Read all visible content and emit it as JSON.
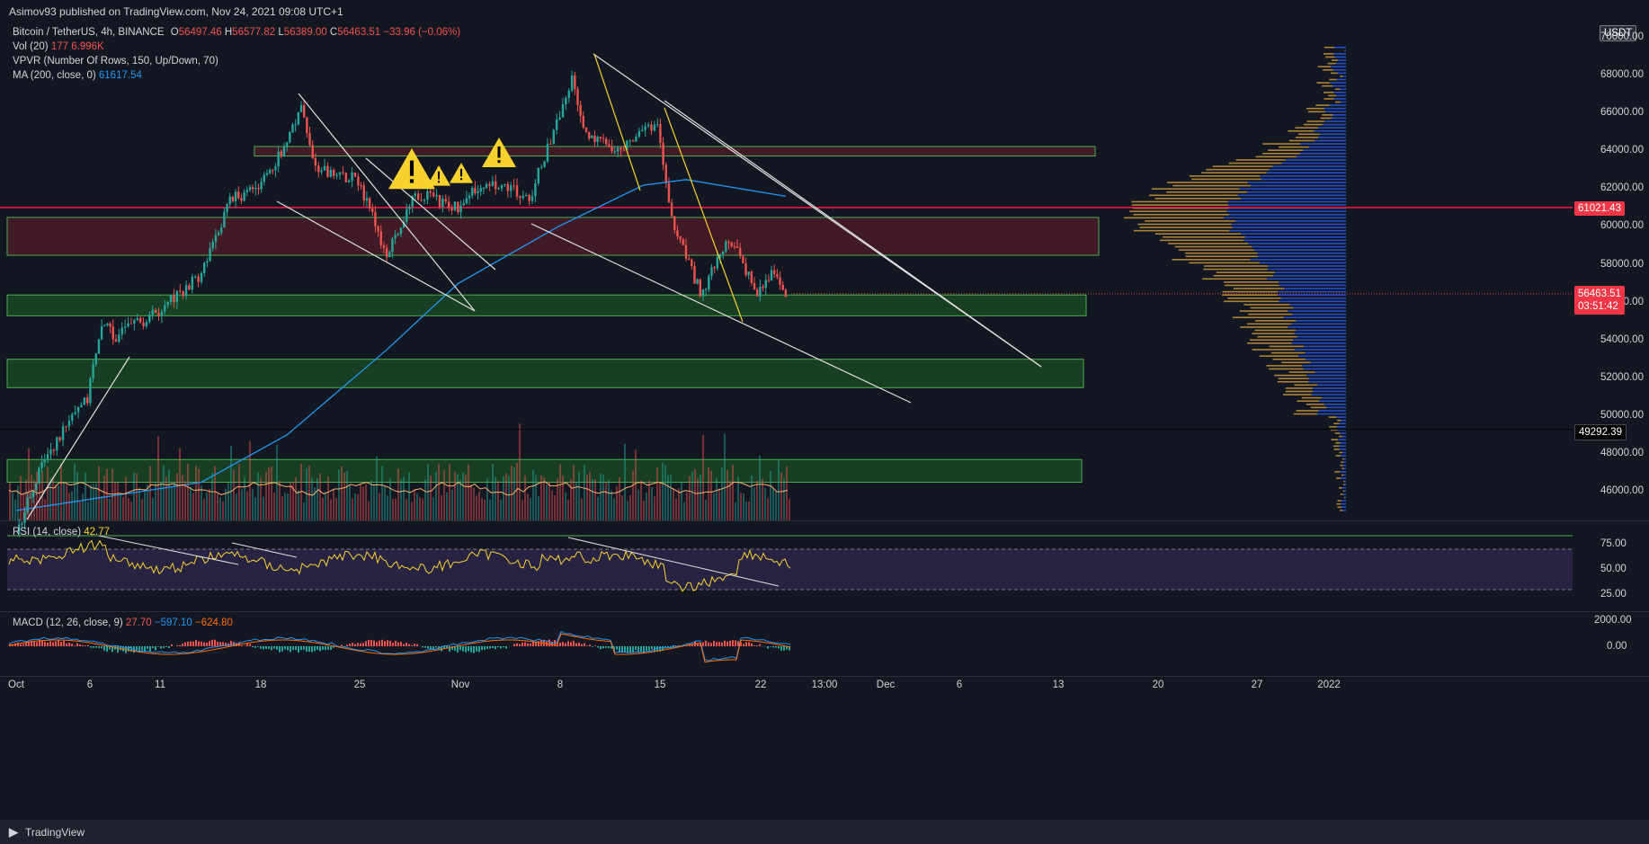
{
  "header": {
    "published": "Asimov93 published on TradingView.com, Nov 24, 2021 09:08 UTC+1"
  },
  "legend": {
    "symbol": "Bitcoin / TetherUS, 4h, BINANCE",
    "o_label": "O",
    "o": "56497.46",
    "h_label": "H",
    "h": "56577.82",
    "l_label": "L",
    "l": "56389.00",
    "c_label": "C",
    "c": "56463.51",
    "chg": "−33.96 (−0.06%)",
    "vol_label": "Vol (20)",
    "vol_a": "177",
    "vol_b": "6.996K",
    "vpvr_label": "VPVR (Number Of Rows, 150, Up/Down, 70)",
    "ma_label": "MA (200, close, 0)",
    "ma_val": "61617.54",
    "rsi_label": "RSI (14, close)",
    "rsi_val": "42.77",
    "macd_label": "MACD (12, 26, close, 9)",
    "macd_a": "27.70",
    "macd_b": "−597.10",
    "macd_c": "−624.80"
  },
  "price_axis": {
    "currency": "USDT",
    "ticks": [
      "70000.00",
      "68000.00",
      "66000.00",
      "64000.00",
      "62000.00",
      "60000.00",
      "58000.00",
      "56000.00",
      "54000.00",
      "52000.00",
      "50000.00",
      "48000.00",
      "46000.00"
    ],
    "tag_red": "61021.43",
    "tag_price": "56463.51",
    "tag_timer": "03:51:42",
    "tag_black": "49292.39"
  },
  "rsi_axis": [
    "75.00",
    "50.00",
    "25.00"
  ],
  "macd_axis": [
    "2000.00",
    "0.00"
  ],
  "time_axis": [
    "Oct",
    "6",
    "11",
    "18",
    "25",
    "Nov",
    "8",
    "15",
    "22",
    "13:00",
    "Dec",
    "6",
    "13",
    "20",
    "27",
    "2022"
  ],
  "footer": {
    "brand": "TradingView"
  },
  "colors": {
    "bg": "#131722",
    "up": "#26a69a",
    "down": "#ef5350",
    "ma": "#2962ff",
    "rsi": "#f7d22f",
    "zone_green": "#1f5e22",
    "zone_red": "#5c1f24"
  },
  "chart_data": {
    "type": "candlestick",
    "symbol": "BTCUSDT",
    "timeframe": "4h",
    "ylim": [
      45000,
      70500
    ],
    "x_range": [
      "2021-10-01",
      "2022-01-01"
    ],
    "key_close_path": [
      {
        "date": "2021-10-01",
        "close": 43800
      },
      {
        "date": "2021-10-03",
        "close": 47800
      },
      {
        "date": "2021-10-06",
        "close": 51000
      },
      {
        "date": "2021-10-07",
        "close": 55000
      },
      {
        "date": "2021-10-08",
        "close": 54200
      },
      {
        "date": "2021-10-11",
        "close": 55500
      },
      {
        "date": "2021-10-14",
        "close": 57500
      },
      {
        "date": "2021-10-16",
        "close": 61500
      },
      {
        "date": "2021-10-18",
        "close": 62000
      },
      {
        "date": "2021-10-20",
        "close": 64500
      },
      {
        "date": "2021-10-21",
        "close": 66500
      },
      {
        "date": "2021-10-22",
        "close": 63000
      },
      {
        "date": "2021-10-25",
        "close": 62500
      },
      {
        "date": "2021-10-27",
        "close": 58500
      },
      {
        "date": "2021-10-29",
        "close": 61800
      },
      {
        "date": "2021-11-01",
        "close": 61000
      },
      {
        "date": "2021-11-03",
        "close": 62500
      },
      {
        "date": "2021-11-06",
        "close": 61500
      },
      {
        "date": "2021-11-09",
        "close": 67800
      },
      {
        "date": "2021-11-10",
        "close": 65000
      },
      {
        "date": "2021-11-12",
        "close": 64000
      },
      {
        "date": "2021-11-15",
        "close": 65500
      },
      {
        "date": "2021-11-16",
        "close": 60500
      },
      {
        "date": "2021-11-18",
        "close": 56500
      },
      {
        "date": "2021-11-19",
        "close": 57800
      },
      {
        "date": "2021-11-20",
        "close": 59500
      },
      {
        "date": "2021-11-22",
        "close": 56500
      },
      {
        "date": "2021-11-23",
        "close": 57500
      },
      {
        "date": "2021-11-24",
        "close": 56463.51
      }
    ],
    "ma200": [
      {
        "date": "2021-10-01",
        "value": 45000
      },
      {
        "date": "2021-10-14",
        "value": 46500
      },
      {
        "date": "2021-10-20",
        "value": 49000
      },
      {
        "date": "2021-10-27",
        "value": 53500
      },
      {
        "date": "2021-11-01",
        "value": 57000
      },
      {
        "date": "2021-11-08",
        "value": 60000
      },
      {
        "date": "2021-11-14",
        "value": 62200
      },
      {
        "date": "2021-11-17",
        "value": 62500
      },
      {
        "date": "2021-11-24",
        "value": 61617.54
      }
    ],
    "zones": [
      {
        "type": "resistance",
        "from": 63750,
        "to": 64250
      },
      {
        "type": "resistance",
        "from": 58500,
        "to": 60500
      },
      {
        "type": "support",
        "from": 55300,
        "to": 56400
      },
      {
        "type": "support",
        "from": 51500,
        "to": 53000
      },
      {
        "type": "support",
        "from": 46500,
        "to": 47700
      }
    ],
    "horizontal_lines": [
      61021.43,
      49292.39
    ],
    "rsi": {
      "ylim": [
        0,
        100
      ],
      "levels": [
        70,
        30
      ],
      "last": 42.77
    },
    "macd": {
      "last_hist": 27.7,
      "last_macd": -597.1,
      "last_signal": -624.8
    }
  }
}
